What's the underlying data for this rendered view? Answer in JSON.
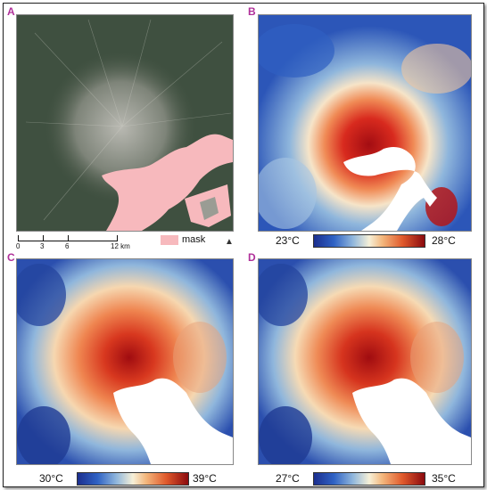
{
  "panels": {
    "a": {
      "label": "A",
      "mask_label": "mask",
      "scale_ticks": [
        "0",
        "3",
        "6",
        "12 km"
      ]
    },
    "b": {
      "label": "B",
      "min": "23°C",
      "max": "28°C"
    },
    "c": {
      "label": "C",
      "min": "30°C",
      "max": "39°C"
    },
    "d": {
      "label": "D",
      "min": "27°C",
      "max": "35°C"
    }
  },
  "colors": {
    "mask": "#f7b9bd",
    "label_accent": "#b0309a",
    "cold": "#1c2f8f",
    "hot": "#8b0a0e"
  }
}
